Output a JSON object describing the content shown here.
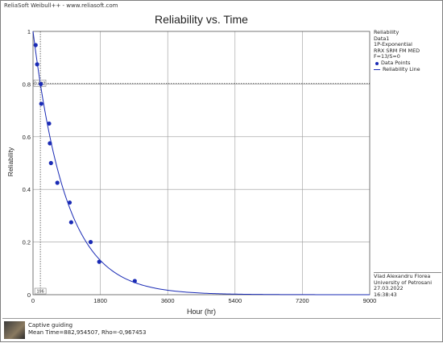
{
  "app": {
    "header": "ReliaSoft Weibull++ - www.reliasoft.com"
  },
  "chart_data": {
    "type": "scatter",
    "title": "Reliability vs. Time",
    "xlabel": "Hour (hr)",
    "ylabel": "Reliability",
    "xlim": [
      0,
      9000
    ],
    "ylim": [
      0,
      1
    ],
    "x_ticks": [
      0,
      1800,
      3600,
      5400,
      7200,
      9000
    ],
    "y_ticks": [
      0,
      0.2,
      0.4,
      0.6,
      0.8,
      1
    ],
    "x_tick_labels": [
      "0",
      "1800",
      "3600",
      "5400",
      "7200",
      "9000"
    ],
    "y_tick_labels": [
      "0",
      "0.2",
      "0.4",
      "0.6",
      "0.8",
      "1"
    ],
    "grid": true,
    "mean_time": 882.954507,
    "marker": {
      "x": 196,
      "y": 0.802,
      "x_label": "196",
      "y_label": "0.802"
    },
    "series": [
      {
        "name": "Data Points",
        "kind": "points",
        "points": [
          {
            "x": 70,
            "y": 0.948
          },
          {
            "x": 110,
            "y": 0.875
          },
          {
            "x": 210,
            "y": 0.8
          },
          {
            "x": 220,
            "y": 0.725
          },
          {
            "x": 430,
            "y": 0.65
          },
          {
            "x": 450,
            "y": 0.575
          },
          {
            "x": 480,
            "y": 0.5
          },
          {
            "x": 650,
            "y": 0.425
          },
          {
            "x": 980,
            "y": 0.35
          },
          {
            "x": 1020,
            "y": 0.275
          },
          {
            "x": 1540,
            "y": 0.2
          },
          {
            "x": 1770,
            "y": 0.125
          },
          {
            "x": 2720,
            "y": 0.052
          }
        ]
      },
      {
        "name": "Reliability Line",
        "kind": "line"
      }
    ],
    "colors": {
      "series": "#1a2bb5",
      "grid": "#9a9a9a"
    }
  },
  "legend": {
    "heading": "Reliability",
    "lines": [
      "Data1",
      "1P-Exponential",
      "RRX SRM FM MED",
      "F=13/S=0"
    ],
    "points_label": "Data Points",
    "line_label": "Reliability Line"
  },
  "signature": {
    "lines": [
      "Vlad Alexandru Florea",
      "University of Petrosani",
      "27.03.2022",
      "16:38:43"
    ]
  },
  "footer": {
    "caption": "Captive guiding",
    "stats": "Mean Time=882,954507, Rho=-0,967453"
  }
}
